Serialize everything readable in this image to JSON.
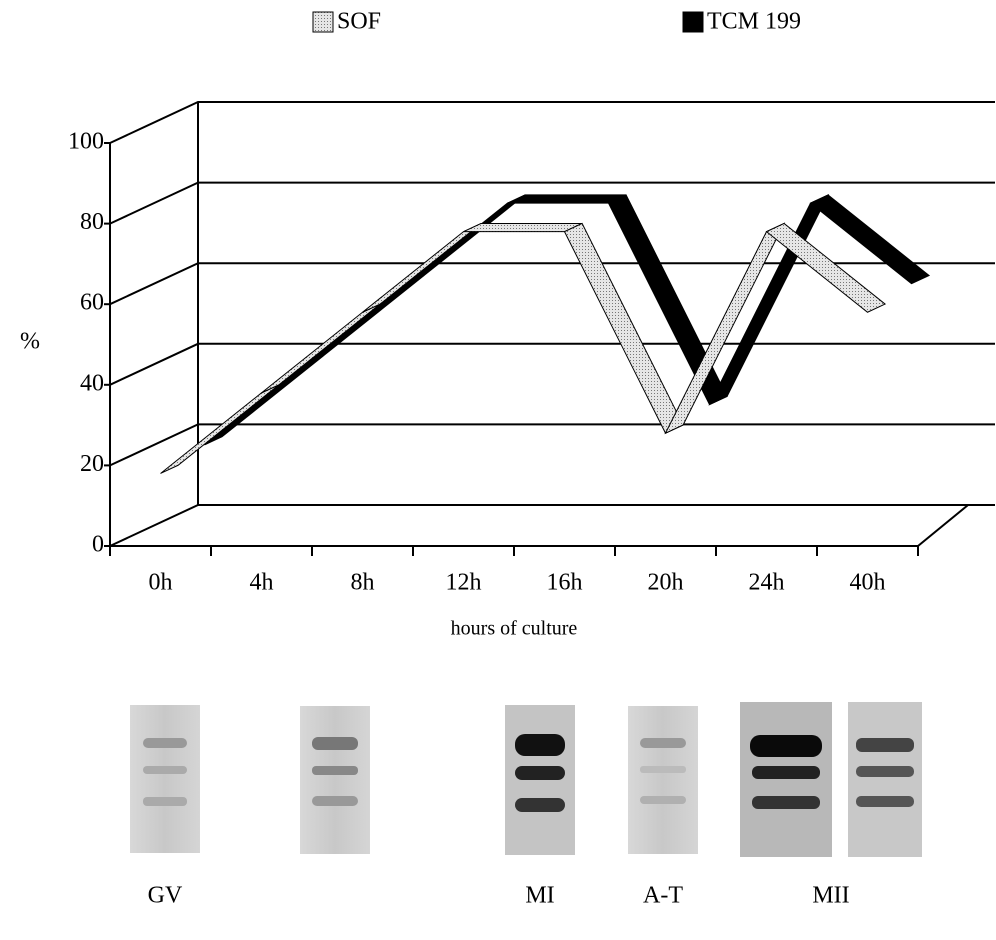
{
  "chart_data": {
    "type": "ribbon3d",
    "categories": [
      "0h",
      "4h",
      "8h",
      "12h",
      "16h",
      "20h",
      "24h",
      "40h"
    ],
    "series": [
      {
        "name": "SOF",
        "color": "#c8c8c8",
        "values": [
          18,
          38,
          58,
          78,
          78,
          28,
          78,
          58
        ]
      },
      {
        "name": "TCM 199",
        "color": "#000000",
        "values": [
          20,
          40,
          60,
          80,
          80,
          30,
          80,
          60
        ]
      }
    ],
    "ylim": [
      0,
      100
    ],
    "yticks": [
      0,
      20,
      40,
      60,
      80,
      100
    ],
    "grid": true,
    "ylabel": "%",
    "xlabel": "hours of culture"
  },
  "blot_labels": [
    "GV",
    "MI",
    "A-T",
    "MII"
  ]
}
